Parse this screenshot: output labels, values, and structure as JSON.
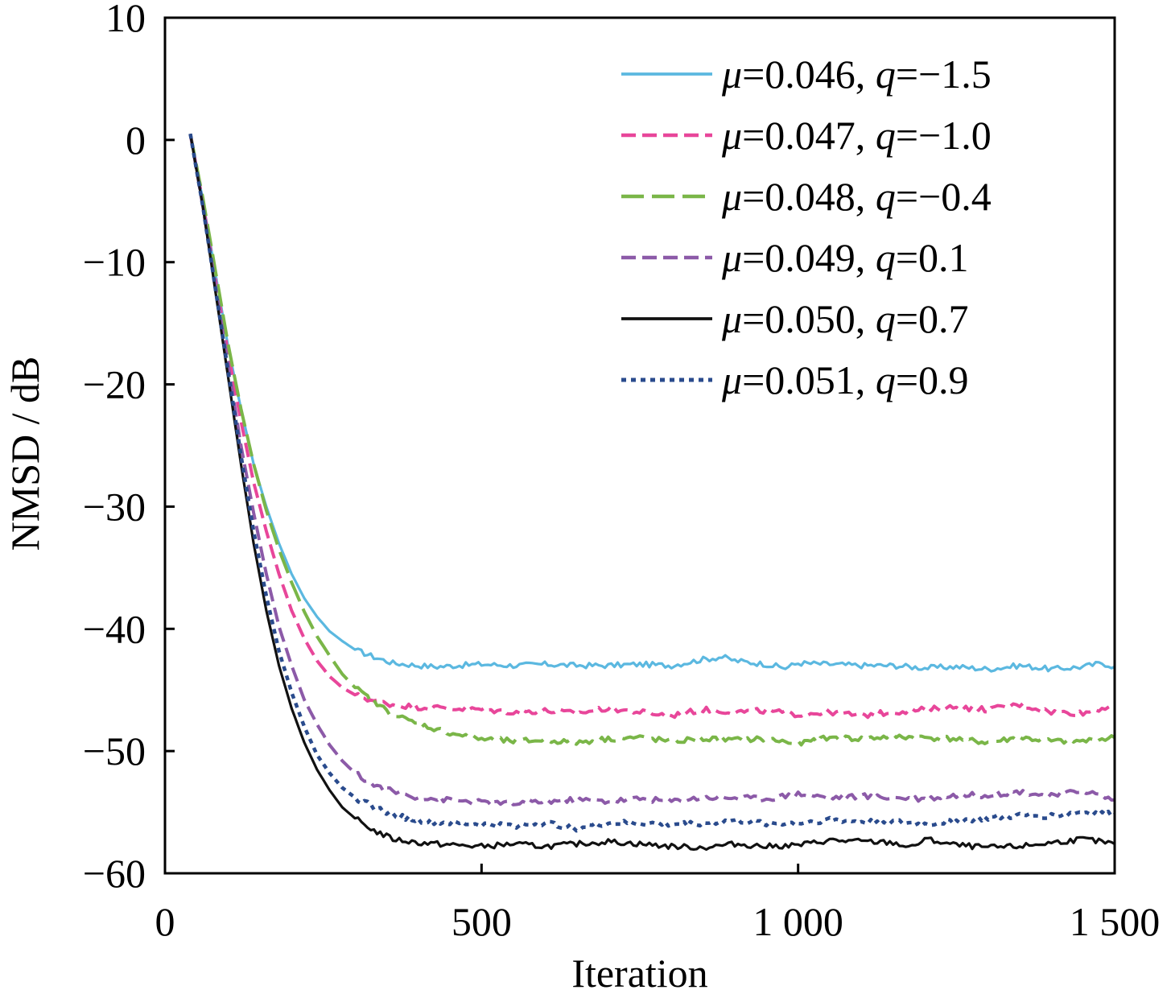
{
  "chart_data": {
    "type": "line",
    "title": "",
    "xlabel": "Iteration",
    "ylabel": "NMSD / dB",
    "xlim": [
      0,
      1500
    ],
    "ylim": [
      -60,
      10
    ],
    "xticks": [
      0,
      500,
      1000,
      1500
    ],
    "xtick_labels": [
      "0",
      "500",
      "1 000",
      "1 500"
    ],
    "yticks": [
      10,
      0,
      -10,
      -20,
      -30,
      -40,
      -50,
      -60
    ],
    "ytick_labels": [
      "10",
      "0",
      "−10",
      "−20",
      "−30",
      "−40",
      "−50",
      "−60"
    ],
    "grid": false,
    "legend": "top-right",
    "series": [
      {
        "name": "μ=0.046, q=−1.5",
        "legend": {
          "mu": "μ",
          "mu_value": "=0.046, ",
          "q": "q",
          "q_value": "=−1.5"
        },
        "color": "#5bb8e0",
        "style": "solid",
        "x": [
          40,
          60,
          80,
          100,
          120,
          140,
          160,
          180,
          200,
          220,
          240,
          260,
          280,
          300,
          330,
          360,
          400,
          430,
          460,
          500,
          550,
          600,
          650,
          700,
          750,
          800,
          850,
          880,
          900,
          950,
          980,
          1000,
          1050,
          1100,
          1150,
          1200,
          1250,
          1300,
          1350,
          1400,
          1450,
          1480,
          1500
        ],
        "y": [
          0.5,
          -5.0,
          -11.0,
          -17.0,
          -22.0,
          -26.5,
          -30.0,
          -33.0,
          -35.5,
          -37.5,
          -39.0,
          -40.2,
          -41.0,
          -41.7,
          -42.3,
          -42.8,
          -43.0,
          -43.1,
          -43.0,
          -42.9,
          -43.0,
          -42.9,
          -43.0,
          -43.0,
          -42.9,
          -43.0,
          -42.5,
          -42.3,
          -42.6,
          -42.9,
          -43.2,
          -42.8,
          -42.9,
          -43.0,
          -43.0,
          -43.2,
          -43.1,
          -43.3,
          -43.0,
          -43.3,
          -43.1,
          -42.8,
          -43.1
        ]
      },
      {
        "name": "μ=0.047, q=−1.0",
        "legend": {
          "mu": "μ",
          "mu_value": "=0.047, ",
          "q": "q",
          "q_value": "=−1.0"
        },
        "color": "#e8469a",
        "style": "dash",
        "x": [
          40,
          60,
          80,
          100,
          120,
          140,
          160,
          180,
          200,
          220,
          240,
          260,
          280,
          300,
          330,
          360,
          400,
          450,
          500,
          550,
          600,
          650,
          700,
          750,
          800,
          850,
          900,
          950,
          1000,
          1050,
          1100,
          1150,
          1200,
          1250,
          1300,
          1350,
          1400,
          1450,
          1500
        ],
        "y": [
          0.5,
          -5.2,
          -11.5,
          -17.5,
          -23.0,
          -28.0,
          -32.0,
          -35.5,
          -38.5,
          -40.8,
          -42.6,
          -43.9,
          -44.8,
          -45.4,
          -45.9,
          -46.2,
          -46.4,
          -46.5,
          -46.6,
          -46.8,
          -46.7,
          -46.9,
          -46.5,
          -46.8,
          -47.1,
          -46.6,
          -46.8,
          -46.7,
          -47.0,
          -46.8,
          -47.1,
          -46.8,
          -46.6,
          -46.4,
          -46.6,
          -46.2,
          -46.8,
          -46.9,
          -46.2
        ]
      },
      {
        "name": "μ=0.048, q=−0.4",
        "legend": {
          "mu": "μ",
          "mu_value": "=0.048, ",
          "q": "q",
          "q_value": "=−0.4"
        },
        "color": "#7ab648",
        "style": "longdash",
        "x": [
          40,
          60,
          80,
          100,
          120,
          140,
          160,
          180,
          200,
          220,
          240,
          260,
          280,
          300,
          330,
          360,
          400,
          450,
          500,
          550,
          600,
          650,
          700,
          750,
          800,
          850,
          900,
          950,
          1000,
          1050,
          1100,
          1150,
          1200,
          1250,
          1300,
          1350,
          1400,
          1450,
          1500
        ],
        "y": [
          0.5,
          -4.8,
          -10.8,
          -16.8,
          -22.0,
          -26.5,
          -30.3,
          -33.5,
          -36.2,
          -38.6,
          -40.6,
          -42.2,
          -43.7,
          -44.8,
          -46.0,
          -47.0,
          -47.8,
          -48.5,
          -49.0,
          -49.2,
          -49.1,
          -49.3,
          -49.0,
          -48.9,
          -49.2,
          -49.0,
          -49.1,
          -49.0,
          -49.4,
          -48.9,
          -49.0,
          -48.8,
          -48.9,
          -49.0,
          -49.3,
          -48.9,
          -49.2,
          -49.2,
          -48.9
        ]
      },
      {
        "name": "μ=0.049, q=0.1",
        "legend": {
          "mu": "μ",
          "mu_value": "=0.049, ",
          "q": "q",
          "q_value": "=0.1"
        },
        "color": "#8c5aa8",
        "style": "dash",
        "x": [
          40,
          60,
          80,
          100,
          120,
          140,
          160,
          180,
          200,
          220,
          240,
          260,
          280,
          300,
          330,
          360,
          400,
          450,
          500,
          550,
          600,
          650,
          700,
          750,
          800,
          850,
          900,
          950,
          1000,
          1050,
          1100,
          1150,
          1200,
          1250,
          1300,
          1350,
          1400,
          1450,
          1500
        ],
        "y": [
          0.5,
          -5.5,
          -12.0,
          -18.5,
          -25.0,
          -30.5,
          -35.5,
          -39.8,
          -43.0,
          -45.8,
          -47.8,
          -49.5,
          -50.8,
          -51.8,
          -52.8,
          -53.3,
          -53.8,
          -54.0,
          -54.2,
          -54.3,
          -54.1,
          -54.0,
          -54.1,
          -53.9,
          -54.1,
          -53.8,
          -53.8,
          -53.9,
          -53.5,
          -53.8,
          -53.7,
          -53.8,
          -53.9,
          -53.6,
          -53.6,
          -53.3,
          -53.7,
          -53.2,
          -54.0
        ]
      },
      {
        "name": "μ=0.050, q=0.7",
        "legend": {
          "mu": "μ",
          "mu_value": "=0.050, ",
          "q": "q",
          "q_value": "=0.7"
        },
        "color": "#111111",
        "style": "solid",
        "x": [
          40,
          60,
          80,
          100,
          120,
          140,
          160,
          180,
          200,
          220,
          240,
          260,
          280,
          300,
          330,
          360,
          400,
          430,
          460,
          500,
          550,
          600,
          650,
          700,
          750,
          800,
          850,
          900,
          950,
          1000,
          1050,
          1100,
          1150,
          1180,
          1200,
          1250,
          1300,
          1350,
          1400,
          1450,
          1500
        ],
        "y": [
          0.5,
          -5.5,
          -12.5,
          -19.5,
          -26.5,
          -33.0,
          -38.5,
          -43.0,
          -46.5,
          -49.3,
          -51.5,
          -53.2,
          -54.6,
          -55.5,
          -56.5,
          -57.2,
          -57.5,
          -57.6,
          -57.7,
          -57.8,
          -57.6,
          -57.8,
          -57.6,
          -57.4,
          -57.6,
          -57.8,
          -57.9,
          -57.6,
          -57.8,
          -57.7,
          -57.3,
          -57.4,
          -57.5,
          -57.9,
          -57.2,
          -57.7,
          -57.9,
          -57.8,
          -57.5,
          -57.2,
          -57.6
        ]
      },
      {
        "name": "μ=0.051, q=0.9",
        "legend": {
          "mu": "μ",
          "mu_value": "=0.051, ",
          "q": "q",
          "q_value": "=0.9"
        },
        "color": "#2a4b8d",
        "style": "dot",
        "x": [
          40,
          60,
          80,
          100,
          120,
          140,
          160,
          180,
          200,
          220,
          240,
          260,
          280,
          300,
          330,
          360,
          400,
          450,
          500,
          550,
          600,
          650,
          700,
          750,
          800,
          850,
          900,
          950,
          1000,
          1050,
          1100,
          1150,
          1200,
          1250,
          1300,
          1350,
          1400,
          1450,
          1500
        ],
        "y": [
          0.5,
          -5.5,
          -12.3,
          -19.0,
          -25.8,
          -32.0,
          -37.3,
          -41.8,
          -45.2,
          -48.0,
          -50.3,
          -51.8,
          -53.0,
          -53.8,
          -54.6,
          -55.2,
          -55.7,
          -55.9,
          -56.0,
          -56.1,
          -55.9,
          -56.3,
          -55.9,
          -55.9,
          -56.0,
          -55.9,
          -55.7,
          -55.9,
          -55.9,
          -55.6,
          -55.8,
          -55.8,
          -56.0,
          -55.7,
          -55.5,
          -55.3,
          -55.3,
          -55.0,
          -55.2
        ]
      }
    ]
  }
}
